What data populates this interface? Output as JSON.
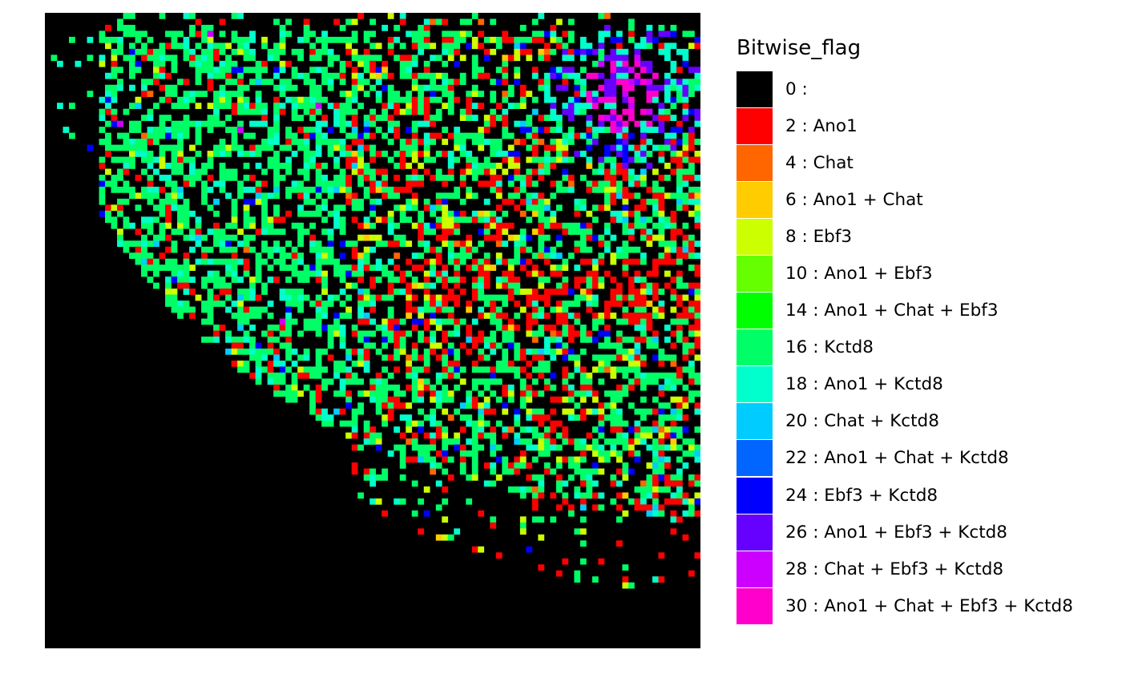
{
  "chart_data": {
    "type": "heatmap",
    "title": "",
    "xlabel": "",
    "ylabel": "",
    "grid": false,
    "background": "#000000",
    "legend_title": "Bitwise_flag",
    "legend_position": "right",
    "categories": [
      {
        "value": 0,
        "label": "0 :",
        "color": "#000000"
      },
      {
        "value": 2,
        "label": "2 : Ano1",
        "color": "#FF0000"
      },
      {
        "value": 4,
        "label": "4 : Chat",
        "color": "#FF6600"
      },
      {
        "value": 6,
        "label": "6 : Ano1 + Chat",
        "color": "#FFCC00"
      },
      {
        "value": 8,
        "label": "8 : Ebf3",
        "color": "#CCFF00"
      },
      {
        "value": 10,
        "label": "10 : Ano1 + Ebf3",
        "color": "#66FF00"
      },
      {
        "value": 14,
        "label": "14 : Ano1 + Chat + Ebf3",
        "color": "#00FF00"
      },
      {
        "value": 16,
        "label": "16 : Kctd8",
        "color": "#00FF66"
      },
      {
        "value": 18,
        "label": "18 : Ano1 + Kctd8",
        "color": "#00FFCC"
      },
      {
        "value": 20,
        "label": "20 : Chat + Kctd8",
        "color": "#00CCFF"
      },
      {
        "value": 22,
        "label": "22 : Ano1 + Chat + Kctd8",
        "color": "#0066FF"
      },
      {
        "value": 24,
        "label": "24 : Ebf3 + Kctd8",
        "color": "#0000FF"
      },
      {
        "value": 26,
        "label": "26 : Ano1 + Ebf3 + Kctd8",
        "color": "#6600FF"
      },
      {
        "value": 28,
        "label": "28 : Chat + Ebf3 + Kctd8",
        "color": "#CC00FF"
      },
      {
        "value": 30,
        "label": "30 : Ano1 + Chat + Ebf3 + Kctd8",
        "color": "#FF00CC"
      }
    ],
    "grid_cols": 109,
    "grid_rows": 106,
    "cells": {
      "mix": "approximate random pattern of flags over the tissue region (upper-left lobe, dense green Kctd8 field with red Ano1 patches)",
      "dominant_values": [
        16,
        2,
        8,
        18,
        24,
        26,
        28,
        30
      ],
      "hotspot_values": [
        30,
        26
      ]
    }
  }
}
